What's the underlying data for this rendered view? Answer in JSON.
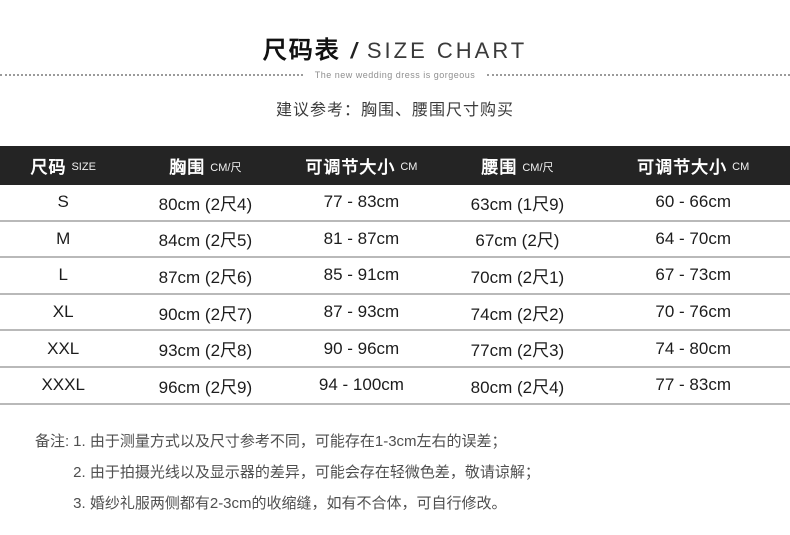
{
  "header": {
    "title_cn": "尺码表",
    "title_divider": "/",
    "title_en": "SIZE CHART",
    "tagline": "The new wedding dress is gorgeous",
    "subtitle": "建议参考：胸围、腰围尺寸购买"
  },
  "table": {
    "headers": [
      {
        "cn": "尺码",
        "en": "SIZE"
      },
      {
        "cn": "胸围",
        "en": "CM/尺"
      },
      {
        "cn": "可调节大小",
        "en": "CM"
      },
      {
        "cn": "腰围",
        "en": "CM/尺"
      },
      {
        "cn": "可调节大小",
        "en": "CM"
      }
    ],
    "rows": [
      [
        "S",
        "80cm (2尺4)",
        "77 - 83cm",
        "63cm (1尺9)",
        "60 - 66cm"
      ],
      [
        "M",
        "84cm (2尺5)",
        "81 - 87cm",
        "67cm (2尺)",
        "64 - 70cm"
      ],
      [
        "L",
        "87cm (2尺6)",
        "85 - 91cm",
        "70cm (2尺1)",
        "67 - 73cm"
      ],
      [
        "XL",
        "90cm (2尺7)",
        "87 - 93cm",
        "74cm (2尺2)",
        "70 - 76cm"
      ],
      [
        "XXL",
        "93cm (2尺8)",
        "90 - 96cm",
        "77cm (2尺3)",
        "74 - 80cm"
      ],
      [
        "XXXL",
        "96cm (2尺9)",
        "94 - 100cm",
        "80cm (2尺4)",
        "77 - 83cm"
      ]
    ]
  },
  "notes": {
    "label": "备注:",
    "items": [
      "1. 由于测量方式以及尺寸参考不同，可能存在1-3cm左右的误差；",
      "2. 由于拍摄光线以及显示器的差异，可能会存在轻微色差，敬请谅解；",
      "3. 婚纱礼服两侧都有2-3cm的收缩缝，如有不合体，可自行修改。"
    ]
  },
  "colors": {
    "header_bg": "#242424",
    "header_text": "#ffffff",
    "row_text": "#1c1c1c",
    "separator": "#b9b9b9",
    "note_text": "#4f4f4f"
  }
}
